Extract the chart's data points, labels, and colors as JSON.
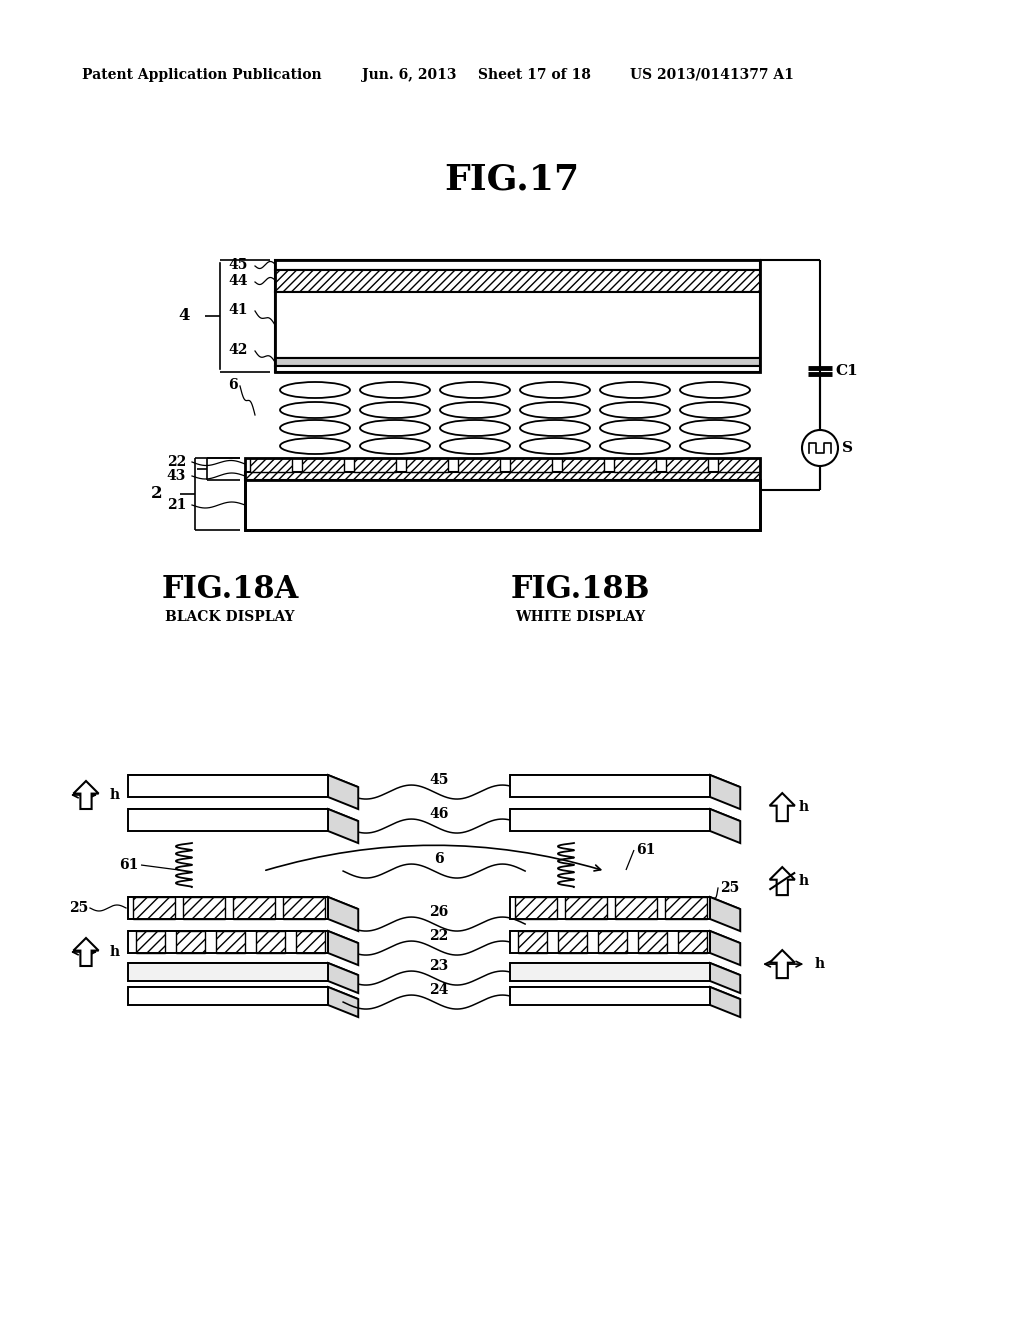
{
  "bg_color": "#ffffff",
  "header_text": "Patent Application Publication",
  "header_date": "Jun. 6, 2013",
  "header_sheet": "Sheet 17 of 18",
  "header_patent": "US 2013/0141377 A1",
  "fig17_title": "FIG.17",
  "fig18a_title": "FIG.18A",
  "fig18b_title": "FIG.18B",
  "fig18a_sub": "BLACK DISPLAY",
  "fig18b_sub": "WHITE DISPLAY"
}
